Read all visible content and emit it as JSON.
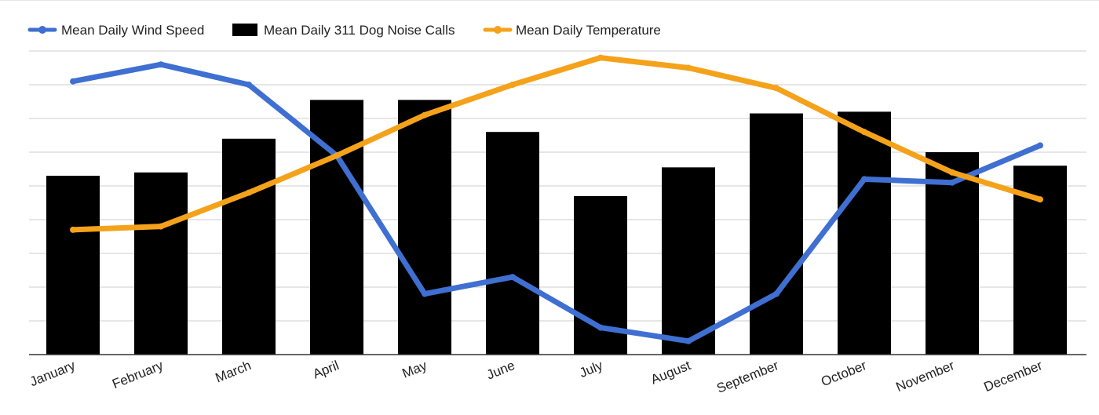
{
  "colors": {
    "wind": "#3f6fd1",
    "calls": "#000000",
    "temperature": "#f5a21b",
    "grid": "#cccccc",
    "axis": "#333333"
  },
  "chart_data": {
    "type": "bar",
    "title": "",
    "xlabel": "",
    "ylabel": "",
    "ylim": [
      0,
      9
    ],
    "grid": true,
    "legend_position": "top-left",
    "y_tick_labels_visible": false,
    "categories": [
      "January",
      "February",
      "March",
      "April",
      "May",
      "June",
      "July",
      "August",
      "September",
      "October",
      "November",
      "December"
    ],
    "series": [
      {
        "name": "Mean Daily Wind Speed",
        "type": "line",
        "color": "#3f6fd1",
        "values": [
          8.1,
          8.6,
          8.0,
          5.9,
          1.8,
          2.3,
          0.8,
          0.4,
          1.8,
          5.2,
          5.1,
          6.2
        ]
      },
      {
        "name": "Mean Daily 311 Dog Noise Calls",
        "type": "bar",
        "color": "#000000",
        "values": [
          5.3,
          5.4,
          6.4,
          7.55,
          7.55,
          6.6,
          4.7,
          5.55,
          7.15,
          7.2,
          6.0,
          5.6
        ]
      },
      {
        "name": "Mean Daily Temperature",
        "type": "line",
        "color": "#f5a21b",
        "values": [
          3.7,
          3.8,
          4.8,
          5.9,
          7.1,
          8.0,
          8.8,
          8.5,
          7.9,
          6.6,
          5.4,
          4.6
        ]
      }
    ]
  }
}
